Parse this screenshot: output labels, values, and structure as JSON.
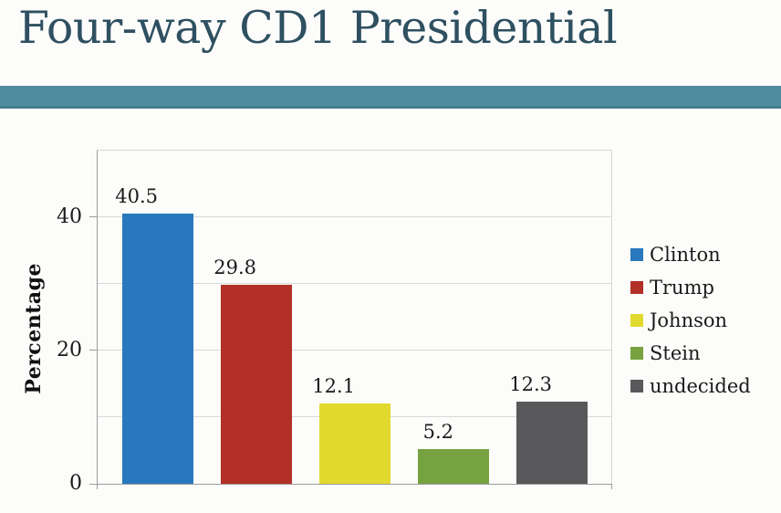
{
  "title": "Four-way CD1 Presidential",
  "theme": {
    "background": "#fcfcfa",
    "title_color": "#2e5061",
    "band_color": "#4f8ca0",
    "band_edge_color": "#457d8d",
    "axis_color": "#9b9b9b",
    "gridline_color": "#d9d9d9",
    "text_color": "#1a1a1a"
  },
  "chart_data": {
    "type": "bar",
    "title": "Four-way CD1 Presidential",
    "categories": [
      "Clinton",
      "Trump",
      "Johnson",
      "Stein",
      "undecided"
    ],
    "values": [
      40.5,
      29.8,
      12.1,
      5.2,
      12.3
    ],
    "value_labels": [
      "40.5",
      "29.8",
      "12.1",
      "5.2",
      "12.3"
    ],
    "colors": [
      "#2878bd",
      "#b23027",
      "#e2d92f",
      "#76a23f",
      "#59595b"
    ],
    "xlabel": "",
    "ylabel": "Percentage",
    "ylim": [
      0,
      50
    ],
    "yticks": [
      0,
      20,
      40
    ],
    "ytick_labels": [
      "0",
      "20",
      "40"
    ],
    "gridline_step": 10,
    "grid": "on",
    "x_tick_labels_shown": false,
    "legend_position": "right",
    "legend": [
      "Clinton",
      "Trump",
      "Johnson",
      "Stein",
      "undecided"
    ]
  }
}
